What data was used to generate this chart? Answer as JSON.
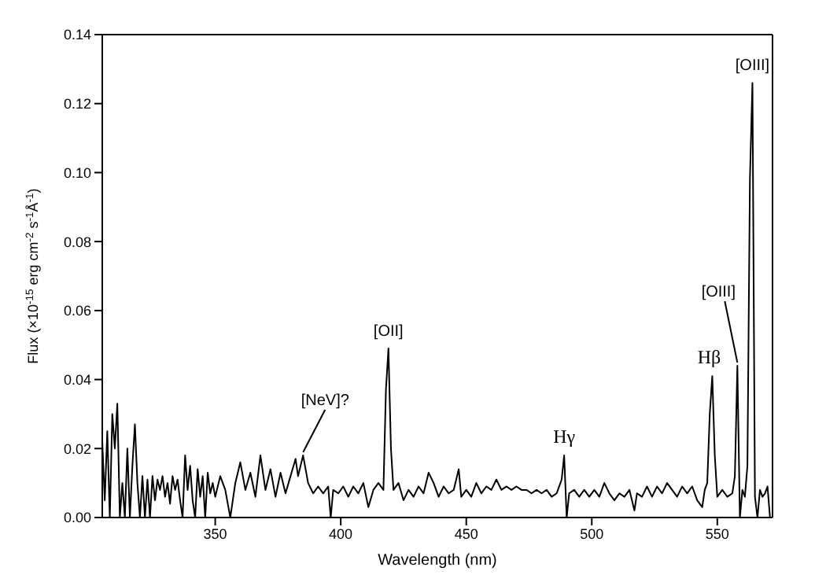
{
  "chart_data": {
    "type": "line",
    "xlabel": "Wavelength (nm)",
    "ylabel": "Flux (×10$^{-15}$ erg cm$^{-2}$ s$^{-1}$Å$^{-1}$)",
    "xlim": [
      305,
      572
    ],
    "ylim": [
      0,
      0.14
    ],
    "xticks": [
      {
        "value": 350,
        "label": "350"
      },
      {
        "value": 400,
        "label": "400"
      },
      {
        "value": 450,
        "label": "450"
      },
      {
        "value": 500,
        "label": "500"
      },
      {
        "value": 550,
        "label": "550"
      }
    ],
    "yticks": [
      {
        "value": 0,
        "label": "0.00"
      },
      {
        "value": 0.02,
        "label": "0.02"
      },
      {
        "value": 0.04,
        "label": "0.04"
      },
      {
        "value": 0.06,
        "label": "0.06"
      },
      {
        "value": 0.08,
        "label": "0.08"
      },
      {
        "value": 0.1,
        "label": "0.10"
      },
      {
        "value": 0.12,
        "label": "0.12"
      },
      {
        "value": 0.14,
        "label": "0.14"
      }
    ],
    "marker": "none",
    "line_style": "solid",
    "series": [
      {
        "color": "#000000",
        "x": [
          305,
          306,
          307,
          308,
          309,
          310,
          311,
          312,
          313,
          314,
          315,
          316,
          317,
          318,
          319,
          320,
          321,
          322,
          323,
          324,
          325,
          326,
          327,
          328,
          329,
          330,
          331,
          332,
          333,
          334,
          335,
          336,
          337,
          338,
          339,
          340,
          341,
          342,
          343,
          344,
          345,
          346,
          347,
          348,
          349,
          350,
          352,
          354,
          356,
          358,
          360,
          362,
          364,
          366,
          368,
          370,
          372,
          374,
          376,
          378,
          380,
          382,
          383,
          385,
          387,
          389,
          391,
          393,
          395,
          396,
          397,
          399,
          401,
          403,
          405,
          407,
          409,
          411,
          413,
          415,
          417,
          418,
          419,
          420,
          421,
          423,
          425,
          427,
          429,
          431,
          433,
          435,
          437,
          439,
          441,
          443,
          445,
          447,
          448,
          450,
          452,
          454,
          456,
          458,
          460,
          462,
          464,
          466,
          468,
          470,
          472,
          474,
          476,
          478,
          480,
          482,
          484,
          486,
          488,
          489,
          490,
          491,
          493,
          495,
          497,
          499,
          501,
          503,
          505,
          507,
          509,
          511,
          513,
          515,
          517,
          518,
          520,
          522,
          524,
          526,
          528,
          530,
          532,
          534,
          536,
          538,
          540,
          542,
          544,
          545,
          546,
          547,
          548,
          549,
          550,
          552,
          554,
          556,
          557,
          558,
          559,
          560,
          561,
          562,
          563,
          564,
          565,
          566,
          567,
          568,
          569,
          570,
          571
        ],
        "values": [
          0.022,
          0.005,
          0.025,
          0.0,
          0.03,
          0.02,
          0.033,
          0.0,
          0.01,
          0.0,
          0.02,
          0.0,
          0.015,
          0.027,
          0.01,
          0.0,
          0.012,
          0.0,
          0.011,
          0.0,
          0.012,
          0.005,
          0.011,
          0.008,
          0.012,
          0.006,
          0.01,
          0.004,
          0.012,
          0.008,
          0.011,
          0.005,
          0.0,
          0.018,
          0.008,
          0.015,
          0.005,
          0.0,
          0.014,
          0.006,
          0.012,
          0.0,
          0.013,
          0.007,
          0.01,
          0.006,
          0.012,
          0.008,
          0.0,
          0.01,
          0.016,
          0.008,
          0.013,
          0.006,
          0.018,
          0.008,
          0.014,
          0.006,
          0.013,
          0.007,
          0.012,
          0.017,
          0.012,
          0.018,
          0.01,
          0.007,
          0.009,
          0.007,
          0.009,
          0.0,
          0.008,
          0.007,
          0.009,
          0.006,
          0.009,
          0.007,
          0.01,
          0.003,
          0.008,
          0.01,
          0.008,
          0.037,
          0.049,
          0.02,
          0.008,
          0.01,
          0.005,
          0.008,
          0.006,
          0.009,
          0.007,
          0.013,
          0.01,
          0.006,
          0.009,
          0.007,
          0.008,
          0.014,
          0.006,
          0.008,
          0.006,
          0.01,
          0.007,
          0.009,
          0.008,
          0.011,
          0.008,
          0.009,
          0.008,
          0.009,
          0.008,
          0.008,
          0.007,
          0.008,
          0.007,
          0.008,
          0.006,
          0.007,
          0.011,
          0.018,
          0.0,
          0.007,
          0.008,
          0.006,
          0.008,
          0.006,
          0.008,
          0.006,
          0.01,
          0.007,
          0.005,
          0.007,
          0.006,
          0.008,
          0.002,
          0.007,
          0.006,
          0.009,
          0.006,
          0.009,
          0.007,
          0.01,
          0.008,
          0.006,
          0.009,
          0.007,
          0.009,
          0.005,
          0.003,
          0.008,
          0.01,
          0.03,
          0.041,
          0.018,
          0.006,
          0.008,
          0.006,
          0.007,
          0.012,
          0.044,
          0.0,
          0.008,
          0.006,
          0.015,
          0.098,
          0.126,
          0.006,
          0.0,
          0.008,
          0.006,
          0.007,
          0.009,
          0.0
        ]
      }
    ],
    "annotations": [
      {
        "text": "[NeV]?",
        "x": 385,
        "y": 0.018
      },
      {
        "text": "[OII]",
        "x": 419,
        "y": 0.049
      },
      {
        "text": "Hγ",
        "x": 489,
        "y": 0.018
      },
      {
        "text": "Hβ",
        "x": 548,
        "y": 0.041
      },
      {
        "text": "[OIII]",
        "x": 558,
        "y": 0.044
      },
      {
        "text": "[OIII]",
        "x": 564,
        "y": 0.126
      }
    ]
  }
}
